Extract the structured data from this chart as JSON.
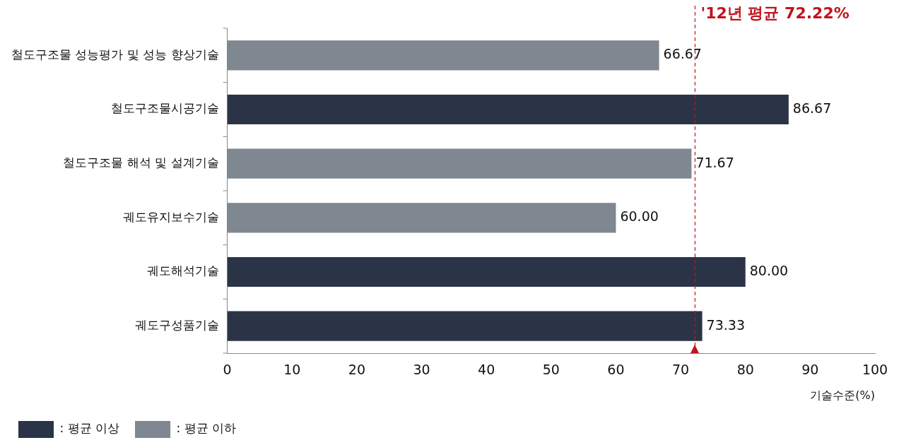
{
  "chart_data": {
    "type": "bar",
    "orientation": "horizontal",
    "stacked": true,
    "categories": [
      "철도구조물 성능평가 및 성능 향상기술",
      "철도구조물시공기술",
      "철도구조물 해석 및 설계기술",
      "궤도유지보수기술",
      "궤도해석기술",
      "궤도구성품기술"
    ],
    "series": [
      {
        "name": ": 평균 이상",
        "color": "#2b3447",
        "values": [
          null,
          86.67,
          null,
          null,
          80.0,
          73.33
        ],
        "value_labels": [
          null,
          "86.67",
          null,
          null,
          "80.00",
          "73.33"
        ]
      },
      {
        "name": ": 평균 이하",
        "color": "#7f8790",
        "values": [
          66.67,
          null,
          71.67,
          60.0,
          null,
          null
        ],
        "value_labels": [
          "66.67",
          null,
          "71.67",
          "60.00",
          null,
          null
        ]
      }
    ],
    "xlim": [
      0,
      100
    ],
    "xticks": [
      0,
      10,
      20,
      30,
      40,
      50,
      60,
      70,
      80,
      90,
      100
    ],
    "xlabel": "기술수준(%)",
    "ref_lines": [
      {
        "axis": "x",
        "value": 72.22,
        "label": "'12년 평균 72.22%",
        "color": "#c0141c",
        "line_style": "dashed"
      }
    ],
    "grid": false,
    "legend": "bottom left"
  }
}
